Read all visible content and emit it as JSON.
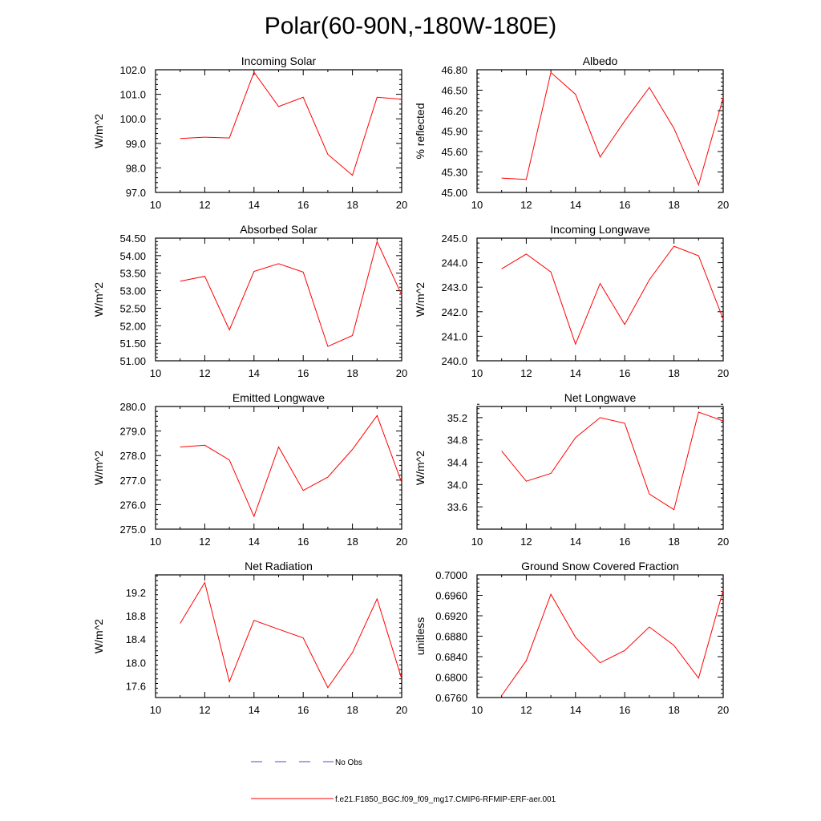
{
  "title": "Polar(60-90N,-180W-180E)",
  "colors": {
    "model_line": "#ff0000",
    "obs_line": "#4b4bd0",
    "axis": "#000000"
  },
  "legend": {
    "obs_label": "No Obs",
    "model_label": "f.e21.F1850_BGC.f09_f09_mg17.CMIP6-RFMIP-ERF-aer.001"
  },
  "chart_data": [
    {
      "type": "line",
      "title": "Incoming Solar",
      "ylabel": "W/m^2",
      "xlim": [
        10,
        20
      ],
      "ylim": [
        97.0,
        102.0
      ],
      "xticks": [
        10,
        12,
        14,
        16,
        18,
        20
      ],
      "xtick_labels": [
        "10",
        "12",
        "14",
        "16",
        "18",
        "20"
      ],
      "yticks": [
        97.0,
        98.0,
        99.0,
        100.0,
        101.0,
        102.0
      ],
      "ytick_labels": [
        "97.0",
        "98.0",
        "99.0",
        "100.0",
        "101.0",
        "102.0"
      ],
      "series": [
        {
          "name": "f.e21.F1850_BGC.f09_f09_mg17.CMIP6-RFMIP-ERF-aer.001",
          "x": [
            11,
            12,
            13,
            14,
            15,
            16,
            17,
            18,
            19,
            20
          ],
          "values": [
            99.2,
            99.25,
            99.22,
            101.9,
            100.5,
            100.88,
            98.55,
            97.7,
            100.88,
            100.8
          ]
        }
      ]
    },
    {
      "type": "line",
      "title": "Albedo",
      "ylabel": "% reflected",
      "xlim": [
        10,
        20
      ],
      "ylim": [
        45.0,
        46.8
      ],
      "xticks": [
        10,
        12,
        14,
        16,
        18,
        20
      ],
      "xtick_labels": [
        "10",
        "12",
        "14",
        "16",
        "18",
        "20"
      ],
      "yticks": [
        45.0,
        45.3,
        45.6,
        45.9,
        46.2,
        46.5,
        46.8
      ],
      "ytick_labels": [
        "45.00",
        "45.30",
        "45.60",
        "45.90",
        "46.20",
        "46.50",
        "46.80"
      ],
      "series": [
        {
          "name": "f.e21.F1850_BGC.f09_f09_mg17.CMIP6-RFMIP-ERF-aer.001",
          "x": [
            11,
            12,
            13,
            14,
            15,
            16,
            17,
            18,
            19,
            20
          ],
          "values": [
            45.21,
            45.19,
            46.76,
            46.44,
            45.52,
            46.05,
            46.54,
            45.94,
            45.11,
            46.39
          ]
        }
      ]
    },
    {
      "type": "line",
      "title": "Absorbed Solar",
      "ylabel": "W/m^2",
      "xlim": [
        10,
        20
      ],
      "ylim": [
        51.0,
        54.5
      ],
      "xticks": [
        10,
        12,
        14,
        16,
        18,
        20
      ],
      "xtick_labels": [
        "10",
        "12",
        "14",
        "16",
        "18",
        "20"
      ],
      "yticks": [
        51.0,
        51.5,
        52.0,
        52.5,
        53.0,
        53.5,
        54.0,
        54.5
      ],
      "ytick_labels": [
        "51.00",
        "51.50",
        "52.00",
        "52.50",
        "53.00",
        "53.50",
        "54.00",
        "54.50"
      ],
      "series": [
        {
          "name": "f.e21.F1850_BGC.f09_f09_mg17.CMIP6-RFMIP-ERF-aer.001",
          "x": [
            11,
            12,
            13,
            14,
            15,
            16,
            17,
            18,
            19,
            20
          ],
          "values": [
            53.27,
            53.41,
            51.88,
            53.55,
            53.77,
            53.53,
            51.41,
            51.72,
            54.4,
            52.88
          ]
        }
      ]
    },
    {
      "type": "line",
      "title": "Incoming Longwave",
      "ylabel": "W/m^2",
      "xlim": [
        10,
        20
      ],
      "ylim": [
        240.0,
        245.0
      ],
      "xticks": [
        10,
        12,
        14,
        16,
        18,
        20
      ],
      "xtick_labels": [
        "10",
        "12",
        "14",
        "16",
        "18",
        "20"
      ],
      "yticks": [
        240.0,
        241.0,
        242.0,
        243.0,
        244.0,
        245.0
      ],
      "ytick_labels": [
        "240.0",
        "241.0",
        "242.0",
        "243.0",
        "244.0",
        "245.0"
      ],
      "series": [
        {
          "name": "f.e21.F1850_BGC.f09_f09_mg17.CMIP6-RFMIP-ERF-aer.001",
          "x": [
            11,
            12,
            13,
            14,
            15,
            16,
            17,
            18,
            19,
            20
          ],
          "values": [
            243.75,
            244.35,
            243.62,
            240.68,
            243.15,
            241.48,
            243.3,
            244.67,
            244.28,
            241.7
          ]
        }
      ]
    },
    {
      "type": "line",
      "title": "Emitted Longwave",
      "ylabel": "W/m^2",
      "xlim": [
        10,
        20
      ],
      "ylim": [
        275.0,
        280.0
      ],
      "xticks": [
        10,
        12,
        14,
        16,
        18,
        20
      ],
      "xtick_labels": [
        "10",
        "12",
        "14",
        "16",
        "18",
        "20"
      ],
      "yticks": [
        275.0,
        276.0,
        277.0,
        278.0,
        279.0,
        280.0
      ],
      "ytick_labels": [
        "275.0",
        "276.0",
        "277.0",
        "278.0",
        "279.0",
        "280.0"
      ],
      "series": [
        {
          "name": "f.e21.F1850_BGC.f09_f09_mg17.CMIP6-RFMIP-ERF-aer.001",
          "x": [
            11,
            12,
            13,
            14,
            15,
            16,
            17,
            18,
            19,
            20
          ],
          "values": [
            278.35,
            278.42,
            277.82,
            275.52,
            278.35,
            276.58,
            277.12,
            278.25,
            279.63,
            276.9
          ]
        }
      ]
    },
    {
      "type": "line",
      "title": "Net Longwave",
      "ylabel": "W/m^2",
      "xlim": [
        10,
        20
      ],
      "ylim": [
        33.2,
        35.4
      ],
      "xticks": [
        10,
        12,
        14,
        16,
        18,
        20
      ],
      "xtick_labels": [
        "10",
        "12",
        "14",
        "16",
        "18",
        "20"
      ],
      "yticks": [
        33.6,
        34.0,
        34.4,
        34.8,
        35.2
      ],
      "ytick_labels": [
        "33.6",
        "34.0",
        "34.4",
        "34.8",
        "35.2"
      ],
      "series": [
        {
          "name": "f.e21.F1850_BGC.f09_f09_mg17.CMIP6-RFMIP-ERF-aer.001",
          "x": [
            11,
            12,
            13,
            14,
            15,
            16,
            17,
            18,
            19,
            20
          ],
          "values": [
            34.6,
            34.06,
            34.2,
            34.84,
            35.2,
            35.1,
            33.83,
            33.55,
            35.3,
            35.14
          ]
        }
      ]
    },
    {
      "type": "line",
      "title": "Net Radiation",
      "ylabel": "W/m^2",
      "xlim": [
        10,
        20
      ],
      "ylim": [
        17.4,
        19.5
      ],
      "xticks": [
        10,
        12,
        14,
        16,
        18,
        20
      ],
      "xtick_labels": [
        "10",
        "12",
        "14",
        "16",
        "18",
        "20"
      ],
      "yticks": [
        17.6,
        18.0,
        18.4,
        18.8,
        19.2
      ],
      "ytick_labels": [
        "17.6",
        "18.0",
        "18.4",
        "18.8",
        "19.2"
      ],
      "series": [
        {
          "name": "f.e21.F1850_BGC.f09_f09_mg17.CMIP6-RFMIP-ERF-aer.001",
          "x": [
            11,
            12,
            13,
            14,
            15,
            16,
            17,
            18,
            19,
            20
          ],
          "values": [
            18.67,
            19.37,
            17.67,
            18.72,
            18.57,
            18.42,
            17.57,
            18.17,
            19.09,
            17.72
          ]
        }
      ]
    },
    {
      "type": "line",
      "title": "Ground Snow Covered Fraction",
      "ylabel": "unitless",
      "xlim": [
        10,
        20
      ],
      "ylim": [
        0.676,
        0.7
      ],
      "xticks": [
        10,
        12,
        14,
        16,
        18,
        20
      ],
      "xtick_labels": [
        "10",
        "12",
        "14",
        "16",
        "18",
        "20"
      ],
      "yticks": [
        0.676,
        0.68,
        0.684,
        0.688,
        0.692,
        0.696,
        0.7
      ],
      "ytick_labels": [
        "0.6760",
        "0.6800",
        "0.6840",
        "0.6880",
        "0.6920",
        "0.6960",
        "0.7000"
      ],
      "series": [
        {
          "name": "f.e21.F1850_BGC.f09_f09_mg17.CMIP6-RFMIP-ERF-aer.001",
          "x": [
            11,
            12,
            13,
            14,
            15,
            16,
            17,
            18,
            19,
            20
          ],
          "values": [
            0.6764,
            0.6832,
            0.6962,
            0.6878,
            0.6828,
            0.6852,
            0.6898,
            0.6862,
            0.6798,
            0.697
          ]
        }
      ]
    }
  ]
}
